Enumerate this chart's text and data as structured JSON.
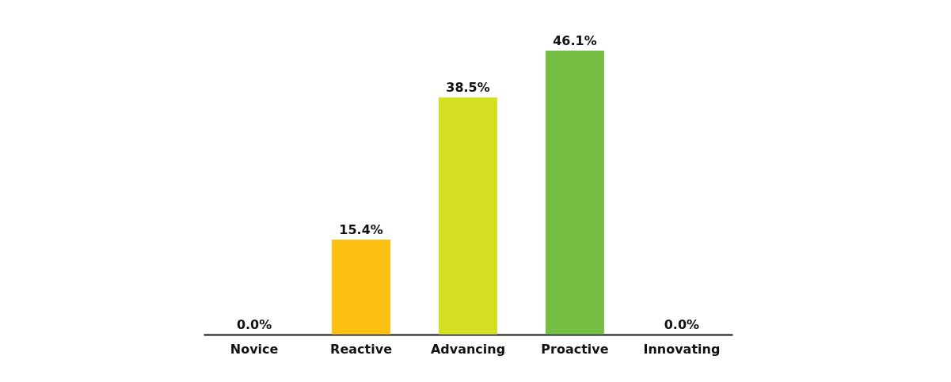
{
  "chart_data": {
    "type": "bar",
    "categories": [
      "Novice",
      "Reactive",
      "Advancing",
      "Proactive",
      "Innovating"
    ],
    "values": [
      0.0,
      15.4,
      38.5,
      46.1,
      0.0
    ],
    "colors": [
      "#f05a28",
      "#fbbf12",
      "#d6e022",
      "#75bf44",
      "#2e9a47"
    ],
    "value_labels": [
      "0.0%",
      "15.4%",
      "38.5%",
      "46.1%",
      "0.0%"
    ],
    "grid": false
  }
}
